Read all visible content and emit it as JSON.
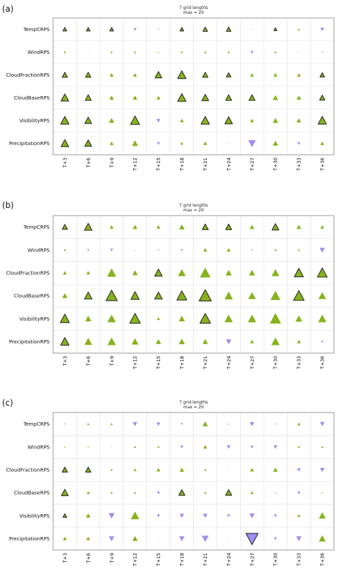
{
  "chart_data": [
    {
      "type": "triangle-matrix",
      "panel": "(a)",
      "title": "7 grid lengths",
      "subtitle": "max = 20",
      "rows": [
        "TempCRPS",
        "WindRPS",
        "CloudFractionRPS",
        "CloudBaseRPS",
        "VisibilityRPS",
        "PrecipitationRPS"
      ],
      "row_labels": [
        "TempCRPS",
        "WindRPS",
        "CloudFractionRPS",
        "CloudBaseRPS",
        "VisibilityRPS",
        "PrecipitationRPS"
      ],
      "columns": [
        "T+3",
        "T+6",
        "T+9",
        "T+12",
        "T+15",
        "T+18",
        "T+21",
        "T+24",
        "T+27",
        "T+30",
        "T+33",
        "T+36"
      ],
      "values": [
        [
          5,
          5,
          5,
          -4,
          -2,
          5,
          6,
          6,
          0,
          4,
          3,
          -5
        ],
        [
          3,
          1,
          3,
          3,
          2,
          3,
          3,
          3,
          -4,
          3,
          1,
          -2
        ],
        [
          7,
          7,
          5,
          5,
          9,
          11,
          7,
          6,
          5,
          5,
          5,
          6
        ],
        [
          10,
          8,
          6,
          6,
          5,
          11,
          9,
          8,
          8,
          7,
          6,
          7
        ],
        [
          11,
          9,
          7,
          12,
          -5,
          5,
          11,
          10,
          5,
          7,
          6,
          11
        ],
        [
          10,
          9,
          5,
          8,
          -4,
          4,
          5,
          1,
          -10,
          7,
          -4,
          5
        ]
      ],
      "outlined": [
        [
          true,
          true,
          true,
          false,
          false,
          true,
          true,
          true,
          false,
          true,
          false,
          false
        ],
        [
          false,
          false,
          false,
          false,
          false,
          false,
          false,
          false,
          false,
          false,
          false,
          false
        ],
        [
          true,
          true,
          false,
          false,
          true,
          true,
          true,
          true,
          false,
          false,
          false,
          true
        ],
        [
          true,
          true,
          false,
          false,
          false,
          true,
          true,
          true,
          true,
          false,
          false,
          true
        ],
        [
          true,
          true,
          false,
          true,
          false,
          false,
          true,
          true,
          false,
          false,
          false,
          true
        ],
        [
          true,
          true,
          false,
          false,
          false,
          false,
          false,
          false,
          false,
          false,
          false,
          false
        ]
      ]
    },
    {
      "type": "triangle-matrix",
      "panel": "(b)",
      "title": "7 grid lengths",
      "subtitle": "max = 20",
      "rows": [
        "TempCRPS",
        "WindRPS",
        "CloudFractionRPS",
        "CloudBaseRPS",
        "VisibilityRPS",
        "PrecipitationRPS"
      ],
      "row_labels": [
        "TempCRPS",
        "WindRPS",
        "CloudFractionRPS",
        "CloudBaseRPS",
        "VisibilityRPS",
        "PrecipitationRPS"
      ],
      "columns": [
        "T+3",
        "T+6",
        "T+9",
        "T+12",
        "T+15",
        "T+18",
        "T+21",
        "T+24",
        "T+27",
        "T+30",
        "T+33",
        "T+36"
      ],
      "values": [
        [
          7,
          10,
          5,
          6,
          5,
          7,
          8,
          8,
          6,
          9,
          6,
          5
        ],
        [
          3,
          -3,
          -4,
          1,
          -2,
          -3,
          5,
          5,
          -2,
          3,
          3,
          -7
        ],
        [
          5,
          5,
          12,
          7,
          10,
          10,
          14,
          8,
          8,
          10,
          12,
          13
        ],
        [
          7,
          10,
          15,
          11,
          10,
          13,
          16,
          11,
          10,
          13,
          14,
          10
        ],
        [
          12,
          8,
          11,
          14,
          4,
          8,
          14,
          11,
          11,
          15,
          9,
          11
        ],
        [
          11,
          10,
          11,
          9,
          7,
          8,
          7,
          -7,
          5,
          11,
          5,
          -3
        ]
      ],
      "outlined": [
        [
          true,
          true,
          false,
          false,
          false,
          false,
          true,
          true,
          false,
          true,
          false,
          false
        ],
        [
          false,
          false,
          false,
          false,
          false,
          false,
          false,
          false,
          false,
          false,
          false,
          false
        ],
        [
          false,
          false,
          false,
          false,
          true,
          false,
          false,
          false,
          false,
          false,
          true,
          true
        ],
        [
          false,
          true,
          true,
          true,
          true,
          true,
          true,
          false,
          false,
          false,
          true,
          false
        ],
        [
          true,
          false,
          false,
          true,
          false,
          false,
          true,
          false,
          false,
          false,
          false,
          false
        ],
        [
          true,
          false,
          false,
          false,
          false,
          false,
          false,
          false,
          false,
          false,
          false,
          false
        ]
      ]
    },
    {
      "type": "triangle-matrix",
      "panel": "(c)",
      "title": "7 grid lengths",
      "subtitle": "max = 20",
      "rows": [
        "TempCRPS",
        "WindRPS",
        "CloudFractionRPS",
        "CloudBaseRPS",
        "VisibilityRPS",
        "PrecipitationRPS"
      ],
      "row_labels": [
        "TempCRPS",
        "WindRPS",
        "CloudFractionRPS",
        "CloudBaseRPS",
        "VisibilityRPS",
        "PrecipitationRPS"
      ],
      "columns": [
        "T+3",
        "T+6",
        "T+9",
        "T+12",
        "T+15",
        "T+18",
        "T+21",
        "T+24",
        "T+27",
        "T+30",
        "T+33",
        "T+36"
      ],
      "values": [
        [
          -2,
          3,
          3,
          -6,
          -5,
          -3,
          7,
          2,
          -6,
          -2,
          4,
          -6
        ],
        [
          2,
          2,
          -1,
          3,
          3,
          -4,
          5,
          -5,
          -4,
          -5,
          3,
          3
        ],
        [
          7,
          7,
          3,
          4,
          5,
          6,
          3,
          0,
          5,
          6,
          -5,
          -6
        ],
        [
          9,
          4,
          3,
          3,
          -4,
          8,
          3,
          8,
          4,
          -2,
          -4,
          2
        ],
        [
          5,
          6,
          -8,
          11,
          -4,
          -6,
          -6,
          -4,
          -7,
          -4,
          4,
          9
        ],
        [
          5,
          5,
          -7,
          7,
          1,
          -7,
          -9,
          1,
          -16,
          -4,
          -7,
          9
        ]
      ],
      "outlined": [
        [
          false,
          false,
          false,
          false,
          false,
          false,
          false,
          false,
          false,
          false,
          false,
          false
        ],
        [
          false,
          false,
          false,
          false,
          false,
          false,
          false,
          false,
          false,
          false,
          false,
          false
        ],
        [
          true,
          true,
          false,
          false,
          false,
          false,
          false,
          false,
          false,
          false,
          false,
          false
        ],
        [
          true,
          false,
          false,
          false,
          false,
          true,
          false,
          true,
          false,
          false,
          false,
          false
        ],
        [
          true,
          false,
          false,
          false,
          false,
          false,
          false,
          false,
          false,
          false,
          false,
          false
        ],
        [
          false,
          false,
          false,
          false,
          false,
          false,
          false,
          false,
          true,
          false,
          false,
          false
        ]
      ]
    }
  ],
  "colors": {
    "positive": "#86b31d",
    "negative": "#9e8ff0",
    "outline": "#2a2a2a",
    "grid": "#dcdcdc",
    "frame": "#9a9a9a"
  }
}
